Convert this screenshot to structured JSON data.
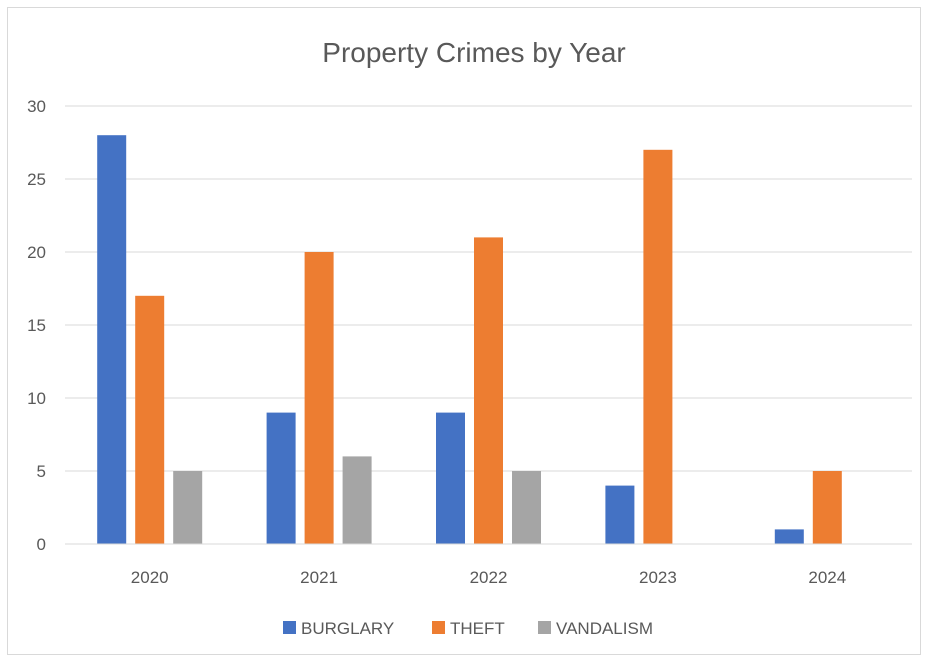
{
  "chart_data": {
    "type": "bar",
    "title": "Property Crimes by Year",
    "xlabel": "",
    "ylabel": "",
    "categories": [
      "2020",
      "2021",
      "2022",
      "2023",
      "2024"
    ],
    "series": [
      {
        "name": "BURGLARY",
        "color": "#4472c4",
        "values": [
          28,
          9,
          9,
          4,
          1
        ]
      },
      {
        "name": "THEFT",
        "color": "#ed7d31",
        "values": [
          17,
          20,
          21,
          27,
          5
        ]
      },
      {
        "name": "VANDALISM",
        "color": "#a5a5a5",
        "values": [
          5,
          6,
          5,
          null,
          null
        ]
      }
    ],
    "ylim": [
      0,
      30
    ],
    "yticks": [
      "0",
      "5",
      "10",
      "15",
      "20",
      "25",
      "30"
    ],
    "grid": true,
    "legend_position": "bottom"
  }
}
